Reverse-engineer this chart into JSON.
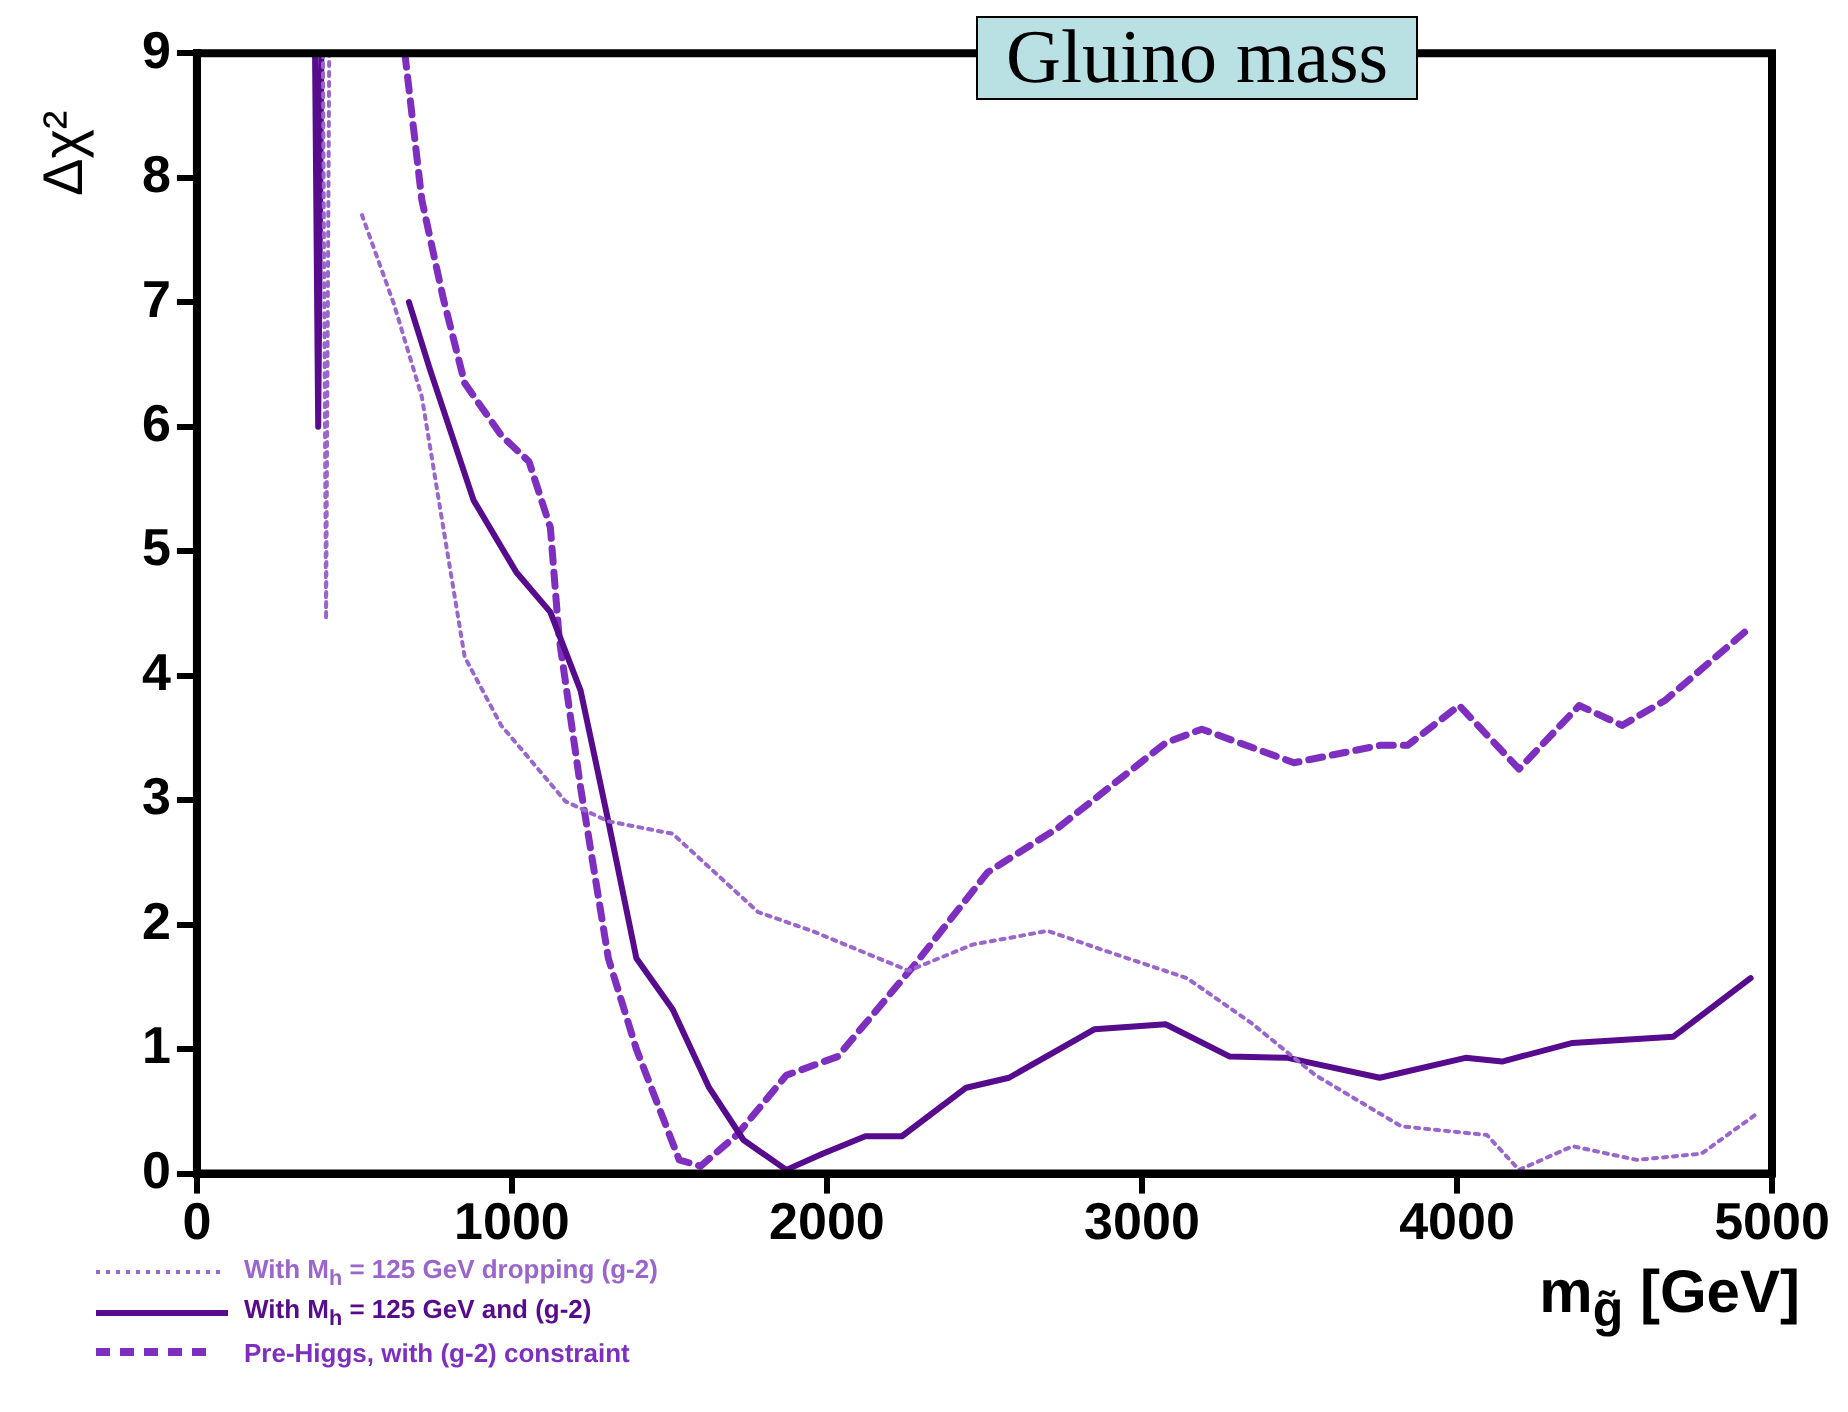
{
  "chart_data": {
    "type": "line",
    "title": "Gluino mass",
    "xlabel": "m$_{g̃}$ [GeV]",
    "ylabel": "Δχ²",
    "xlim": [
      0,
      5000
    ],
    "xticks": [
      0,
      1000,
      2000,
      3000,
      4000,
      5000
    ],
    "ylim": [
      0,
      9
    ],
    "yticks": [
      0,
      1,
      2,
      3,
      4,
      5,
      6,
      7,
      8,
      9
    ],
    "grid": false,
    "legend": "bottom left",
    "marker": "none",
    "series": [
      {
        "name": "With M$_{h}$ = 125 GeV dropping (g-2)",
        "color": "#9a66cc",
        "line_style": "dotted",
        "x": [
          400,
          410,
          420,
          470,
          524,
          626,
          714,
          782,
          850,
          966,
          1170,
          1306,
          1510,
          1782,
          1952,
          2259,
          2463,
          2701,
          2871,
          3143,
          3347,
          3551,
          3823,
          4095,
          4197,
          4367,
          4571,
          4776,
          4946
        ],
        "values": [
          9,
          4.45,
          9,
          null,
          7.7,
          6.98,
          6.24,
          5.19,
          4.15,
          3.6,
          2.99,
          2.83,
          2.73,
          2.1,
          1.95,
          1.63,
          1.84,
          1.95,
          1.8,
          1.57,
          1.21,
          0.79,
          0.38,
          0.31,
          0.03,
          0.22,
          0.11,
          0.16,
          0.47
        ]
      },
      {
        "name": "With M$_{h}$ = 125 GeV and (g-2)",
        "color": "#560c8c",
        "line_style": "solid",
        "x": [
          375,
          385,
          395,
          500,
          673,
          741,
          878,
          1014,
          1122,
          1218,
          1306,
          1395,
          1510,
          1626,
          1735,
          1871,
          1986,
          2122,
          2238,
          2442,
          2578,
          2850,
          3075,
          3279,
          3463,
          3755,
          4027,
          4143,
          4367,
          4687,
          4932
        ],
        "values": [
          9,
          6.0,
          9,
          null,
          7.0,
          6.45,
          5.41,
          4.83,
          4.51,
          3.88,
          2.83,
          1.73,
          1.32,
          0.69,
          0.27,
          0.03,
          0.16,
          0.3,
          0.3,
          0.69,
          0.77,
          1.16,
          1.2,
          0.94,
          0.93,
          0.77,
          0.93,
          0.9,
          1.05,
          1.1,
          1.57
        ]
      },
      {
        "name": "Pre-Higgs, with (g-2) constraint",
        "color": "#7e2fbf",
        "line_style": "dashed",
        "x": [
          660,
          714,
          782,
          850,
          966,
          1054,
          1122,
          1150,
          1218,
          1306,
          1395,
          1531,
          1599,
          1714,
          1871,
          2034,
          2279,
          2510,
          2735,
          3075,
          3190,
          3483,
          3755,
          3843,
          4007,
          4197,
          4388,
          4524,
          4660,
          4932
        ],
        "values": [
          9,
          7.82,
          7.03,
          6.35,
          5.93,
          5.72,
          5.19,
          4.3,
          3.1,
          1.73,
          1.0,
          0.11,
          0.06,
          0.31,
          0.79,
          0.94,
          1.68,
          2.42,
          2.78,
          3.46,
          3.57,
          3.3,
          3.44,
          3.44,
          3.76,
          3.25,
          3.76,
          3.6,
          3.8,
          4.39
        ]
      }
    ]
  }
}
